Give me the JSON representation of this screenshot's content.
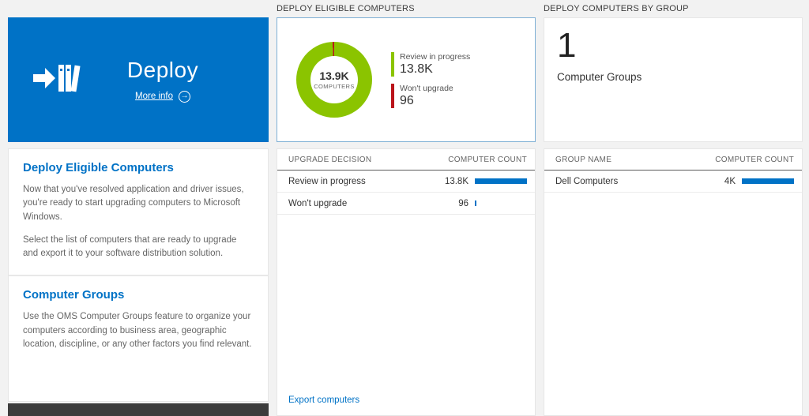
{
  "colors": {
    "accent_blue": "#0072c6",
    "bar_blue": "#0072c6",
    "green": "#8bc400",
    "red": "#ba141a",
    "tile_selected_border": "#7fb0d5"
  },
  "left": {
    "tile": {
      "title": "Deploy",
      "more_info_label": "More info"
    },
    "sections": [
      {
        "heading": "Deploy Eligible Computers",
        "paragraphs": [
          "Now that you've resolved application and driver issues, you're ready to start upgrading computers to Microsoft Windows.",
          "Select the list of computers that are ready to upgrade and export it to your software distribution solution."
        ]
      },
      {
        "heading": "Computer Groups",
        "paragraphs": [
          "Use the OMS Computer Groups feature to organize your computers according to business area, geographic location, discipline, or any other factors you find relevant."
        ]
      }
    ]
  },
  "middle": {
    "header": "DEPLOY ELIGIBLE COMPUTERS",
    "donut": {
      "center_value": "13.9K",
      "center_label": "COMPUTERS",
      "segments": [
        {
          "label": "Review in progress",
          "display": "13.8K",
          "value": 13800,
          "color": "#8bc400"
        },
        {
          "label": "Won't upgrade",
          "display": "96",
          "value": 96,
          "color": "#ba141a"
        }
      ]
    },
    "table": {
      "columns": [
        "UPGRADE DECISION",
        "COMPUTER COUNT"
      ],
      "rows": [
        {
          "label": "Review in progress",
          "value": "13.8K",
          "bar_pct": 100
        },
        {
          "label": "Won't upgrade",
          "value": "96",
          "bar_pct": 3
        }
      ]
    },
    "footer_link": "Export computers"
  },
  "right": {
    "header": "DEPLOY COMPUTERS BY GROUP",
    "tile": {
      "count": "1",
      "label": "Computer Groups"
    },
    "table": {
      "columns": [
        "GROUP NAME",
        "COMPUTER COUNT"
      ],
      "rows": [
        {
          "label": "Dell Computers",
          "value": "4K",
          "bar_pct": 100
        }
      ]
    }
  }
}
